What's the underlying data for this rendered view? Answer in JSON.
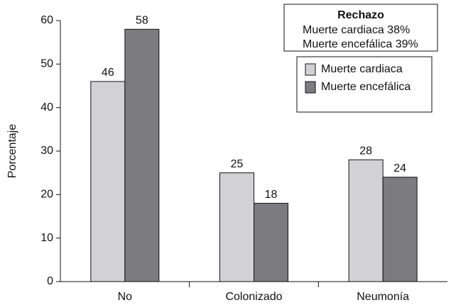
{
  "chart_data": {
    "type": "bar",
    "y_label": "Porcentaje",
    "categories": [
      "No",
      "Colonizado",
      "Neumonía"
    ],
    "series": [
      {
        "name": "Muerte cardiaca",
        "color": "#d2d2d4",
        "values": [
          46,
          25,
          28
        ]
      },
      {
        "name": "Muerte encefálica",
        "color": "#7b7b80",
        "values": [
          58,
          18,
          24
        ]
      }
    ],
    "ylim": [
      0,
      60
    ],
    "yticks": [
      0,
      10,
      20,
      30,
      40,
      50,
      60
    ],
    "annotation": {
      "title": "Rechazo",
      "lines": [
        "Muerte cardiaca 38%",
        "Muerte encefálica 39%"
      ]
    }
  }
}
